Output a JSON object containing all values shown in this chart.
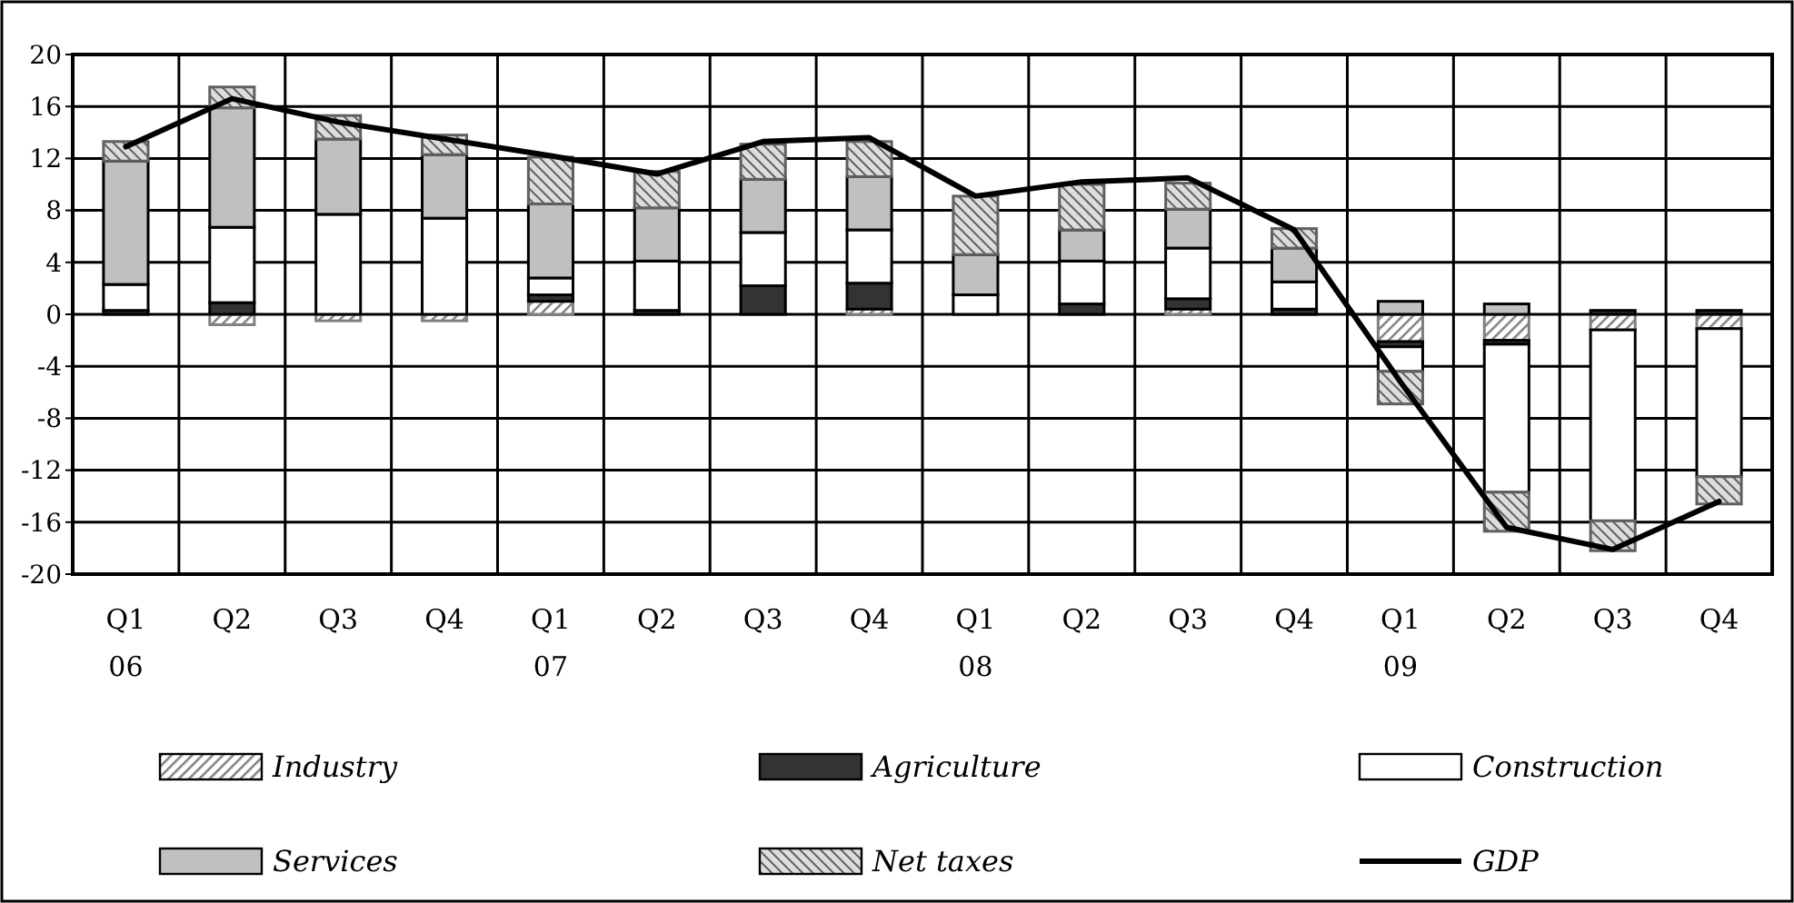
{
  "chart_data": {
    "type": "bar",
    "stacked": true,
    "categories": [
      "Q1 06",
      "Q2",
      "Q3",
      "Q4",
      "Q1 07",
      "Q2",
      "Q3",
      "Q4",
      "Q1 08",
      "Q2",
      "Q3",
      "Q4",
      "Q1 09",
      "Q2",
      "Q3",
      "Q4"
    ],
    "ylim": [
      -20,
      20
    ],
    "yticks": [
      -20,
      -16,
      -12,
      -8,
      -4,
      0,
      4,
      8,
      12,
      16,
      20
    ],
    "grid": true,
    "legend": "bottom",
    "series": [
      {
        "name": "Industry",
        "color": "#808080",
        "values": [
          0,
          -0.8,
          -0.5,
          -0.5,
          1.0,
          0,
          0,
          0.4,
          0,
          0,
          0.4,
          0,
          -2.1,
          -2.0,
          -1.2,
          -1.1
        ]
      },
      {
        "name": "Agriculture",
        "color": "#333333",
        "values": [
          0.3,
          0.9,
          0,
          0,
          0.5,
          0.3,
          2.2,
          2.0,
          0,
          0.8,
          0.8,
          0.4,
          -0.4,
          -0.3,
          0.3,
          0.3
        ]
      },
      {
        "name": "Construction",
        "color": "#ffffff",
        "values": [
          2.0,
          5.8,
          7.7,
          7.4,
          1.3,
          3.8,
          4.1,
          4.1,
          1.5,
          3.3,
          3.9,
          2.1,
          -1.9,
          -11.4,
          -14.7,
          -11.4
        ]
      },
      {
        "name": "Services",
        "color": "#c0c0c0",
        "values": [
          9.5,
          9.2,
          5.8,
          4.9,
          5.7,
          4.1,
          4.1,
          4.1,
          3.1,
          2.4,
          3.0,
          2.6,
          1.0,
          0.8,
          0,
          0
        ]
      },
      {
        "name": "Net taxes",
        "color": "#606060",
        "values": [
          1.5,
          1.6,
          1.8,
          1.5,
          3.6,
          2.8,
          2.7,
          2.7,
          4.5,
          3.5,
          2.0,
          1.5,
          -2.5,
          -3.0,
          -2.3,
          -2.1
        ]
      },
      {
        "name": "GDP",
        "type": "line",
        "color": "#000000",
        "values": [
          12.9,
          16.6,
          14.8,
          13.5,
          12.2,
          10.8,
          13.3,
          13.6,
          9.1,
          10.2,
          10.5,
          6.5,
          -5.2,
          -16.4,
          -18.1,
          -14.4
        ]
      }
    ]
  }
}
